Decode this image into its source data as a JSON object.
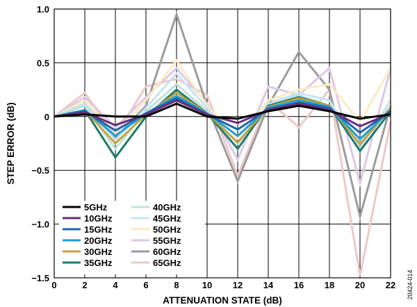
{
  "chart_data": {
    "type": "line",
    "xlabel": "ATTENUATION STATE (dB)",
    "ylabel": "STEP ERROR (dB)",
    "x": [
      0,
      2,
      4,
      6,
      8,
      10,
      12,
      14,
      16,
      18,
      20,
      22
    ],
    "xlim": [
      0,
      22
    ],
    "ylim": [
      -1.5,
      1.0
    ],
    "xticks": [
      "0",
      "2",
      "4",
      "6",
      "8",
      "10",
      "12",
      "14",
      "16",
      "18",
      "20",
      "22"
    ],
    "yticks": [
      "1.0",
      "0.5",
      "0",
      "−0.5",
      "−1.0",
      "−1.5"
    ],
    "grid": true,
    "legend_position": "bottom-left",
    "figure_id": "20424-014",
    "series": [
      {
        "name": "5GHz",
        "color": "#000000",
        "values": [
          0,
          0.02,
          0.0,
          0.0,
          0.12,
          0.0,
          -0.02,
          0.05,
          0.1,
          0.05,
          -0.02,
          0.02
        ]
      },
      {
        "name": "10GHz",
        "color": "#6a2c7e",
        "values": [
          0,
          0.04,
          -0.08,
          0.02,
          0.15,
          0.02,
          -0.06,
          0.06,
          0.12,
          0.06,
          -0.09,
          0.03
        ]
      },
      {
        "name": "15GHz",
        "color": "#1f64ab",
        "values": [
          0,
          0.05,
          -0.13,
          0.03,
          0.17,
          0.02,
          -0.12,
          0.07,
          0.13,
          0.08,
          -0.15,
          0.05
        ]
      },
      {
        "name": "20GHz",
        "color": "#1aa0d8",
        "values": [
          0,
          0.06,
          -0.18,
          0.03,
          0.19,
          0.03,
          -0.18,
          0.08,
          0.15,
          0.09,
          -0.21,
          0.06
        ]
      },
      {
        "name": "30GHz",
        "color": "#c8a13c",
        "values": [
          0,
          0.06,
          -0.25,
          0.02,
          0.22,
          0.03,
          -0.24,
          0.09,
          0.17,
          0.1,
          -0.26,
          0.08
        ]
      },
      {
        "name": "35GHz",
        "color": "#1e7a6e",
        "values": [
          0,
          0.06,
          -0.38,
          0.0,
          0.25,
          0.03,
          -0.3,
          0.1,
          0.18,
          0.1,
          -0.32,
          0.05
        ]
      },
      {
        "name": "40GHz",
        "color": "#bfe2d4",
        "values": [
          0,
          0.1,
          -0.3,
          0.05,
          0.3,
          0.05,
          -0.25,
          0.1,
          0.2,
          0.1,
          -0.25,
          0.1
        ]
      },
      {
        "name": "45GHz",
        "color": "#c6e4f5",
        "values": [
          0,
          0.12,
          -0.22,
          0.08,
          0.4,
          0.08,
          -0.3,
          0.12,
          0.22,
          0.15,
          -0.3,
          0.15
        ]
      },
      {
        "name": "50GHz",
        "color": "#fbeac3",
        "values": [
          0,
          0.15,
          -0.15,
          0.15,
          0.52,
          0.1,
          -0.2,
          0.15,
          0.25,
          0.3,
          -0.05,
          0.45
        ]
      },
      {
        "name": "55GHz",
        "color": "#dcc8e6",
        "values": [
          0,
          0.18,
          -0.1,
          0.18,
          0.45,
          0.12,
          -0.4,
          0.28,
          0.2,
          0.45,
          -0.62,
          0.45
        ]
      },
      {
        "name": "60GHz",
        "color": "#9b9b9b",
        "values": [
          0,
          0.12,
          -0.2,
          0.1,
          0.95,
          0.1,
          -0.6,
          0.1,
          0.6,
          0.25,
          -0.93,
          0.1
        ]
      },
      {
        "name": "65GHz",
        "color": "#efc7c7",
        "values": [
          0,
          0.22,
          -0.18,
          0.28,
          0.35,
          0.2,
          -0.55,
          0.15,
          -0.1,
          0.25,
          -1.48,
          -0.05
        ]
      }
    ]
  }
}
